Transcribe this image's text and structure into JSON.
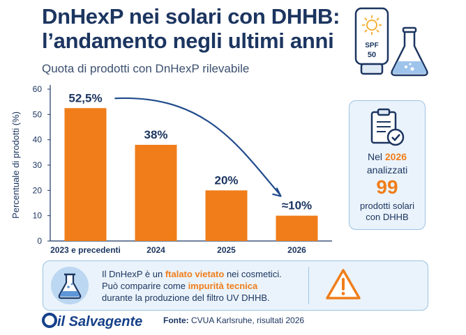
{
  "header": {
    "title_line1": "DnHexP nei solari con DHHB:",
    "title_line2": "l’andamento negli ultimi anni",
    "subtitle": "Quota di prodotti con DnHexP rilevabile",
    "icon_left": "sunscreen-bottle-icon",
    "icon_right": "lab-flask-icon",
    "bottle_label_1": "SPF",
    "bottle_label_2": "50"
  },
  "chart_data": {
    "type": "bar",
    "categories": [
      "2023 e precedenti",
      "2024",
      "2025",
      "2026"
    ],
    "values": [
      52.5,
      38,
      20,
      10
    ],
    "data_labels": [
      "52,5%",
      "38%",
      "20%",
      "≈10%"
    ],
    "title": "",
    "xlabel": "",
    "ylabel": "Percentuale di prodotti (%)",
    "ylim": [
      0,
      60
    ],
    "yticks": [
      0,
      10,
      20,
      30,
      40,
      50,
      60
    ],
    "grid": false,
    "bar_color": "#f07d1a",
    "trend_arrow": true
  },
  "card": {
    "icon": "clipboard-check-icon",
    "line1_prefix": "Nel",
    "line1_year": "2026",
    "line2": "analizzati",
    "number": "99",
    "line3a": "prodotti solari",
    "line3b": "con DHHB"
  },
  "info": {
    "icon_left": "flask-icon",
    "icon_right": "warning-icon",
    "l1_a": "Il DnHexP è un ",
    "l1_b": "ftalato vietato",
    "l1_c": " nei cosmetici.",
    "l2_a": "Può comparire come ",
    "l2_b": "impurità tecnica",
    "l3": "durante la produzione del filtro UV DHHB."
  },
  "footer": {
    "logo": "il Salvagente",
    "source_label": "Fonte:",
    "source_text": " CVUA Karlsruhe, risultati 2026"
  },
  "colors": {
    "navy": "#1c3560",
    "orange": "#f07d1a",
    "panel": "#eaf3fb",
    "panel_border": "#9dc2e3",
    "arrow": "#1f4a8a"
  }
}
